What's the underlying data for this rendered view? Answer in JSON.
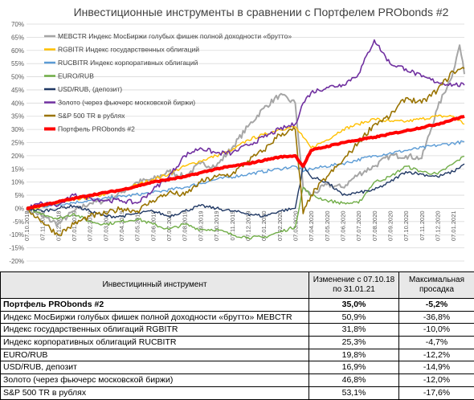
{
  "chart_data": {
    "type": "line",
    "title": "Инвестиционные инструменты в сравнении с Портфелем PRObonds #2",
    "ylim": [
      -20,
      70
    ],
    "yticks": [
      "-20%",
      "-15%",
      "-10%",
      "-5%",
      "0%",
      "5%",
      "10%",
      "15%",
      "20%",
      "25%",
      "30%",
      "35%",
      "40%",
      "45%",
      "50%",
      "55%",
      "60%",
      "65%",
      "70%"
    ],
    "xticks": [
      "07.10.2018",
      "07.11.2018",
      "07.12.2018",
      "07.01.2019",
      "07.02.2019",
      "07.03.2019",
      "07.04.2019",
      "07.05.2019",
      "07.06.2019",
      "07.07.2019",
      "07.08.2019",
      "07.09.2019",
      "07.10.2019",
      "07.11.2019",
      "07.12.2019",
      "07.01.2020",
      "07.02.2020",
      "07.03.2020",
      "07.04.2020",
      "07.05.2020",
      "07.06.2020",
      "07.07.2020",
      "07.08.2020",
      "07.09.2020",
      "07.10.2020",
      "07.11.2020",
      "07.12.2020",
      "07.01.2021"
    ],
    "grid": true,
    "legend": "top-left",
    "series": [
      {
        "name": "MEBCTR Индекс МосБиржи голубых фишек полной доходности «брутто»",
        "color": "#a6a6a6",
        "width": 2,
        "values": [
          [
            0,
            0
          ],
          [
            1,
            -3
          ],
          [
            2,
            -6
          ],
          [
            3,
            -1
          ],
          [
            4,
            2
          ],
          [
            5,
            3
          ],
          [
            6,
            6
          ],
          [
            7,
            10
          ],
          [
            8,
            11
          ],
          [
            9,
            14
          ],
          [
            10,
            12
          ],
          [
            11,
            17
          ],
          [
            12,
            16
          ],
          [
            13,
            23
          ],
          [
            14,
            31
          ],
          [
            15,
            38
          ],
          [
            16,
            43
          ],
          [
            17,
            40
          ],
          [
            17.5,
            8
          ],
          [
            18,
            5
          ],
          [
            19,
            9
          ],
          [
            20,
            8
          ],
          [
            21,
            13
          ],
          [
            22,
            16
          ],
          [
            23,
            20
          ],
          [
            24,
            20
          ],
          [
            25,
            19
          ],
          [
            26,
            38
          ],
          [
            27,
            52
          ],
          [
            27.4,
            62
          ],
          [
            27.7,
            51
          ]
        ]
      },
      {
        "name": "RGBITR Индекс государственных облигаций",
        "color": "#ffc000",
        "width": 1.4,
        "values": [
          [
            0,
            0
          ],
          [
            1,
            0.5
          ],
          [
            2,
            2
          ],
          [
            3,
            3
          ],
          [
            4,
            4
          ],
          [
            5,
            5.5
          ],
          [
            6,
            7
          ],
          [
            7,
            9
          ],
          [
            8,
            11
          ],
          [
            9,
            13
          ],
          [
            10,
            16
          ],
          [
            11,
            18
          ],
          [
            12,
            20
          ],
          [
            13,
            22
          ],
          [
            14,
            26
          ],
          [
            15,
            28
          ],
          [
            16,
            30
          ],
          [
            17,
            31
          ],
          [
            17.5,
            27
          ],
          [
            18,
            23
          ],
          [
            19,
            26
          ],
          [
            20,
            30
          ],
          [
            21,
            32
          ],
          [
            22,
            34
          ],
          [
            23,
            33
          ],
          [
            24,
            33
          ],
          [
            25,
            34
          ],
          [
            26,
            35
          ],
          [
            27,
            35
          ],
          [
            27.7,
            32
          ]
        ]
      },
      {
        "name": "RUCBITR Индекс корпоративных облигаций",
        "color": "#5b9bd5",
        "width": 1.4,
        "values": [
          [
            0,
            0
          ],
          [
            2,
            1.5
          ],
          [
            4,
            3
          ],
          [
            6,
            4.5
          ],
          [
            8,
            6
          ],
          [
            10,
            8
          ],
          [
            12,
            11
          ],
          [
            14,
            13
          ],
          [
            16,
            15
          ],
          [
            17,
            16
          ],
          [
            17.5,
            14
          ],
          [
            18,
            15
          ],
          [
            20,
            17
          ],
          [
            22,
            20
          ],
          [
            24,
            22
          ],
          [
            26,
            24
          ],
          [
            27.7,
            25.3
          ]
        ]
      },
      {
        "name": "EURO/RUB",
        "color": "#70ad47",
        "width": 1.4,
        "values": [
          [
            0,
            0
          ],
          [
            1,
            -2
          ],
          [
            2,
            -4
          ],
          [
            3,
            -2
          ],
          [
            4,
            -5
          ],
          [
            5,
            -6
          ],
          [
            6,
            -5
          ],
          [
            7,
            -4
          ],
          [
            8,
            -6
          ],
          [
            9,
            -8
          ],
          [
            10,
            -6
          ],
          [
            11,
            -8
          ],
          [
            12,
            -8
          ],
          [
            13,
            -10
          ],
          [
            14,
            -11
          ],
          [
            15,
            -11
          ],
          [
            16,
            -9
          ],
          [
            17,
            -7
          ],
          [
            17.5,
            8
          ],
          [
            18,
            5
          ],
          [
            19,
            3
          ],
          [
            20,
            2
          ],
          [
            21,
            2
          ],
          [
            22,
            10
          ],
          [
            23,
            12
          ],
          [
            24,
            16
          ],
          [
            25,
            14
          ],
          [
            26,
            13
          ],
          [
            27,
            17
          ],
          [
            27.7,
            19.8
          ]
        ]
      },
      {
        "name": "USD/RUB, (депозит)",
        "color": "#203864",
        "width": 1.4,
        "values": [
          [
            0,
            0
          ],
          [
            1,
            -1
          ],
          [
            2,
            0
          ],
          [
            3,
            1
          ],
          [
            4,
            -1
          ],
          [
            5,
            -3
          ],
          [
            6,
            -3
          ],
          [
            7,
            -2
          ],
          [
            8,
            -1
          ],
          [
            9,
            -3
          ],
          [
            10,
            -1
          ],
          [
            11,
            1
          ],
          [
            12,
            0
          ],
          [
            13,
            -1
          ],
          [
            14,
            -2
          ],
          [
            15,
            -3
          ],
          [
            16,
            -1
          ],
          [
            17,
            0
          ],
          [
            17.5,
            16
          ],
          [
            18,
            12
          ],
          [
            19,
            10
          ],
          [
            20,
            5
          ],
          [
            21,
            6
          ],
          [
            22,
            7
          ],
          [
            23,
            10
          ],
          [
            24,
            14
          ],
          [
            25,
            13
          ],
          [
            26,
            12
          ],
          [
            27,
            14
          ],
          [
            27.7,
            16.9
          ]
        ]
      },
      {
        "name": "Золото (через фьючерс московской биржи)",
        "color": "#7030a0",
        "width": 1.6,
        "values": [
          [
            0,
            0
          ],
          [
            1,
            2
          ],
          [
            2,
            1
          ],
          [
            3,
            5
          ],
          [
            4,
            4
          ],
          [
            5,
            3
          ],
          [
            6,
            3
          ],
          [
            7,
            2
          ],
          [
            8,
            7
          ],
          [
            9,
            12
          ],
          [
            10,
            20
          ],
          [
            11,
            23
          ],
          [
            12,
            21
          ],
          [
            13,
            21
          ],
          [
            14,
            24
          ],
          [
            15,
            27
          ],
          [
            16,
            30
          ],
          [
            17,
            32
          ],
          [
            17.5,
            40
          ],
          [
            18,
            44
          ],
          [
            19,
            46
          ],
          [
            20,
            47
          ],
          [
            21,
            51
          ],
          [
            22,
            64
          ],
          [
            23,
            55
          ],
          [
            24,
            53
          ],
          [
            25,
            50
          ],
          [
            26,
            48
          ],
          [
            27,
            47
          ],
          [
            27.7,
            46.8
          ]
        ]
      },
      {
        "name": "S&P 500 TR в рублях",
        "color": "#997300",
        "width": 1.6,
        "values": [
          [
            0,
            0
          ],
          [
            1,
            -5
          ],
          [
            2,
            -10
          ],
          [
            3,
            -6
          ],
          [
            4,
            -3
          ],
          [
            5,
            -2
          ],
          [
            6,
            0
          ],
          [
            7,
            -1
          ],
          [
            8,
            3
          ],
          [
            9,
            6
          ],
          [
            10,
            5
          ],
          [
            11,
            10
          ],
          [
            12,
            12
          ],
          [
            13,
            13
          ],
          [
            14,
            18
          ],
          [
            15,
            22
          ],
          [
            16,
            28
          ],
          [
            17,
            30
          ],
          [
            17.5,
            -2
          ],
          [
            18,
            5
          ],
          [
            19,
            12
          ],
          [
            20,
            18
          ],
          [
            21,
            25
          ],
          [
            22,
            32
          ],
          [
            23,
            35
          ],
          [
            24,
            42
          ],
          [
            25,
            40
          ],
          [
            26,
            45
          ],
          [
            27,
            52
          ],
          [
            27.7,
            53.1
          ]
        ]
      },
      {
        "name": "Портфель PRObonds #2",
        "color": "#ff0000",
        "width": 4,
        "values": [
          [
            0,
            0
          ],
          [
            2,
            2.5
          ],
          [
            4,
            5
          ],
          [
            6,
            7
          ],
          [
            8,
            10
          ],
          [
            10,
            12
          ],
          [
            12,
            15
          ],
          [
            14,
            17
          ],
          [
            16,
            19.5
          ],
          [
            17,
            20
          ],
          [
            17.5,
            16
          ],
          [
            18,
            22
          ],
          [
            20,
            25
          ],
          [
            22,
            27
          ],
          [
            24,
            29.5
          ],
          [
            26,
            32
          ],
          [
            27.7,
            35
          ]
        ]
      }
    ]
  },
  "table": {
    "headers": [
      "Инвестицинный инструмент",
      "Изменение с 07.10.18 по 31.01.21",
      "Максимальная просадка"
    ],
    "rows": [
      {
        "name": "Портфель PRObonds #2",
        "change": "35,0%",
        "drawdown": "-5,2%",
        "bold": true
      },
      {
        "name": "Индекс МосБиржи голубых фишек полной доходности «брутто» MEBCTR",
        "change": "50,9%",
        "drawdown": "-36,8%"
      },
      {
        "name": "Индекс государственных облигаций RGBITR",
        "change": "31,8%",
        "drawdown": "-10,0%"
      },
      {
        "name": "Индекс корпоративных облигаций RUCBITR",
        "change": "25,3%",
        "drawdown": "-4,7%"
      },
      {
        "name": "EURO/RUB",
        "change": "19,8%",
        "drawdown": "-12,2%"
      },
      {
        "name": "USD/RUB, депозит",
        "change": "16,9%",
        "drawdown": "-14,9%"
      },
      {
        "name": "Золото (через фьючерс московской биржи)",
        "change": "46,8%",
        "drawdown": "-12,0%"
      },
      {
        "name": "S&P 500 TR в рублях",
        "change": "53,1%",
        "drawdown": "-17,6%"
      }
    ]
  }
}
